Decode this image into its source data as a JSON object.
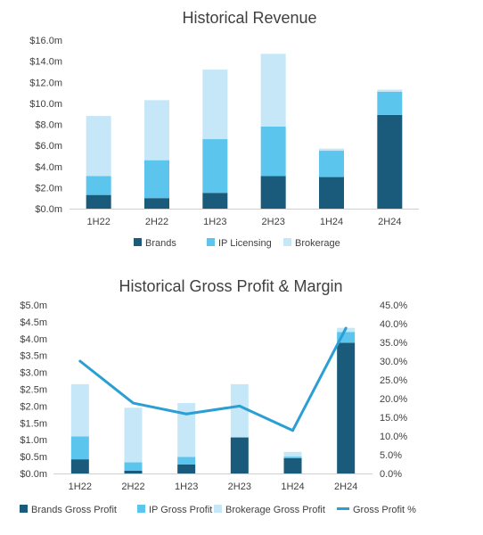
{
  "chart_data": [
    {
      "type": "bar",
      "stacked": true,
      "title": "Historical Revenue",
      "categories": [
        "1H22",
        "2H22",
        "1H23",
        "2H23",
        "1H24",
        "2H24"
      ],
      "series": [
        {
          "name": "Brands",
          "color": "#1a5a7a",
          "values": [
            1.3,
            1.0,
            1.5,
            3.1,
            3.0,
            8.9
          ]
        },
        {
          "name": "IP Licensing",
          "color": "#5bc5ee",
          "values": [
            1.8,
            3.6,
            5.1,
            4.7,
            2.5,
            2.2
          ]
        },
        {
          "name": "Brokerage",
          "color": "#c6e7f7",
          "values": [
            5.7,
            5.7,
            6.6,
            6.9,
            0.2,
            0.2
          ]
        }
      ],
      "ylim": [
        0,
        16
      ],
      "yticks": [
        0,
        2,
        4,
        6,
        8,
        10,
        12,
        14,
        16
      ],
      "ytick_labels": [
        "$0.0m",
        "$2.0m",
        "$4.0m",
        "$6.0m",
        "$8.0m",
        "$10.0m",
        "$12.0m",
        "$14.0m",
        "$16.0m"
      ],
      "legend": "bottom",
      "grid": false
    },
    {
      "type": "bar",
      "stacked": true,
      "title": "Historical Gross Profit & Margin",
      "categories": [
        "1H22",
        "2H22",
        "1H23",
        "2H23",
        "1H24",
        "2H24"
      ],
      "series": [
        {
          "name": "Brands Gross Profit",
          "color": "#1a5a7a",
          "values": [
            0.42,
            0.08,
            0.27,
            1.07,
            0.45,
            3.88
          ]
        },
        {
          "name": "IP Gross Profit",
          "color": "#5bc5ee",
          "values": [
            0.68,
            0.25,
            0.22,
            0.0,
            0.05,
            0.32
          ]
        },
        {
          "name": "Brokerage Gross Profit",
          "color": "#c6e7f7",
          "values": [
            1.55,
            1.62,
            1.6,
            1.58,
            0.14,
            0.12
          ]
        }
      ],
      "line_series": {
        "name": "Gross Profit %",
        "color": "#2b9fd3",
        "values": [
          30.0,
          18.8,
          15.9,
          18.0,
          11.5,
          38.8
        ]
      },
      "ylim": [
        0,
        5
      ],
      "yticks": [
        0,
        0.5,
        1,
        1.5,
        2,
        2.5,
        3,
        3.5,
        4,
        4.5,
        5
      ],
      "ytick_labels": [
        "$0.0m",
        "$0.5m",
        "$1.0m",
        "$1.5m",
        "$2.0m",
        "$2.5m",
        "$3.0m",
        "$3.5m",
        "$4.0m",
        "$4.5m",
        "$5.0m"
      ],
      "y2lim": [
        0,
        45
      ],
      "y2ticks": [
        0,
        5,
        10,
        15,
        20,
        25,
        30,
        35,
        40,
        45
      ],
      "y2tick_labels": [
        "0.0%",
        "5.0%",
        "10.0%",
        "15.0%",
        "20.0%",
        "25.0%",
        "30.0%",
        "35.0%",
        "40.0%",
        "45.0%"
      ],
      "legend": "bottom",
      "grid": false
    }
  ]
}
